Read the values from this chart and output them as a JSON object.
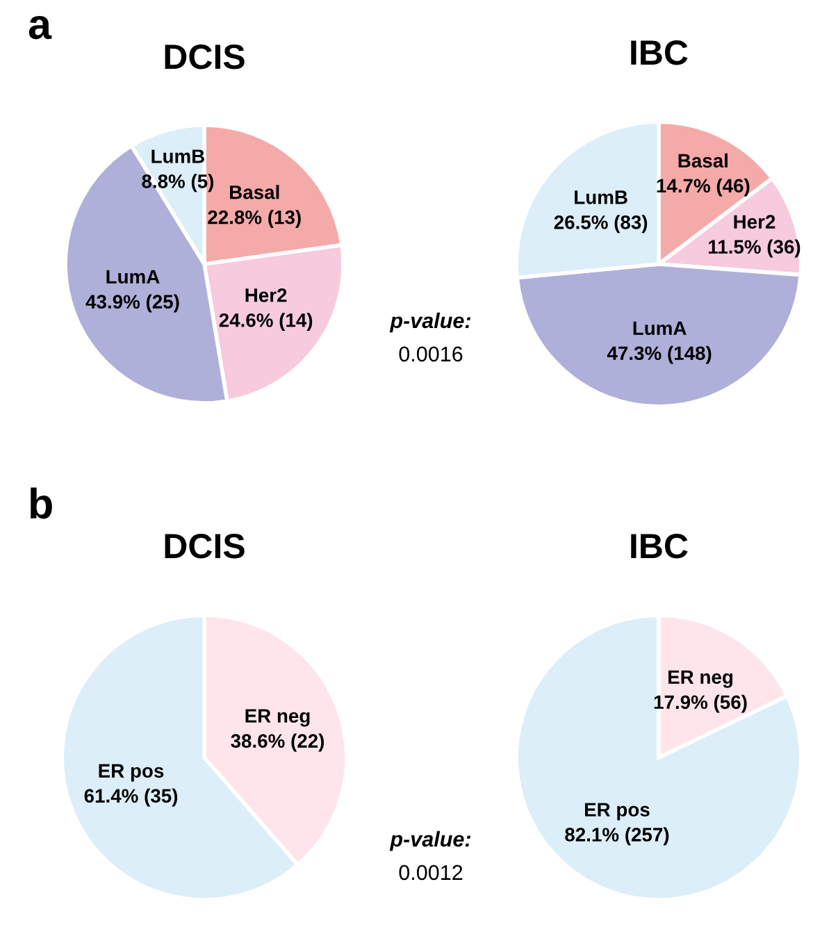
{
  "chart_data": [
    {
      "type": "pie",
      "title": "DCIS",
      "categories": [
        "Basal",
        "Her2",
        "LumA",
        "LumB"
      ],
      "values": [
        13,
        14,
        25,
        5
      ],
      "value_labels": [
        "22.8% (13)",
        "24.6% (14)",
        "43.9% (25)",
        "8.8% (5)"
      ],
      "colors": [
        "#f4aaa9",
        "#f7cadd",
        "#afb0d9",
        "#dceef8"
      ],
      "annotations": [
        "a",
        "p-value:",
        "0.0016"
      ]
    },
    {
      "type": "pie",
      "title": "IBC",
      "categories": [
        "Basal",
        "Her2",
        "LumA",
        "LumB"
      ],
      "values": [
        46,
        36,
        148,
        83
      ],
      "value_labels": [
        "14.7% (46)",
        "11.5% (36)",
        "47.3% (148)",
        "26.5% (83)"
      ],
      "colors": [
        "#f4aaa9",
        "#f7cadd",
        "#afb0d9",
        "#dceef8"
      ]
    },
    {
      "type": "pie",
      "title": "DCIS",
      "categories": [
        "ER neg",
        "ER pos"
      ],
      "values": [
        22,
        35
      ],
      "value_labels": [
        "38.6% (22)",
        "61.4% (35)"
      ],
      "colors": [
        "#fde5eb",
        "#dceef8"
      ],
      "annotations": [
        "b",
        "p-value:",
        "0.0012"
      ]
    },
    {
      "type": "pie",
      "title": "IBC",
      "categories": [
        "ER neg",
        "ER pos"
      ],
      "values": [
        56,
        257
      ],
      "value_labels": [
        "17.9% (56)",
        "82.1% (257)"
      ],
      "colors": [
        "#fde5eb",
        "#dceef8"
      ]
    }
  ]
}
